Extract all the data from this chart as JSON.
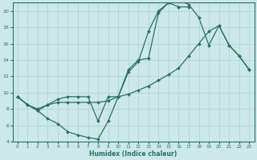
{
  "xlabel": "Humidex (Indice chaleur)",
  "bg_color": "#cce8e8",
  "grid_color": "#b0d0d0",
  "line_color": "#2a706a",
  "xlim": [
    -0.5,
    23.5
  ],
  "ylim": [
    4,
    21
  ],
  "xticks": [
    0,
    1,
    2,
    3,
    4,
    5,
    6,
    7,
    8,
    9,
    10,
    11,
    12,
    13,
    14,
    15,
    16,
    17,
    18,
    19,
    20,
    21,
    22,
    23
  ],
  "yticks": [
    4,
    6,
    8,
    10,
    12,
    14,
    16,
    18,
    20
  ],
  "line1_x": [
    0,
    1,
    2,
    3,
    4,
    5,
    6,
    7,
    8,
    9,
    10,
    11,
    12,
    13,
    14,
    15,
    16,
    17
  ],
  "line1_y": [
    9.5,
    8.5,
    7.8,
    6.8,
    6.2,
    5.2,
    4.8,
    4.5,
    4.3,
    6.5,
    9.5,
    12.5,
    13.8,
    17.5,
    20.0,
    21.0,
    20.5,
    20.5
  ],
  "line2_x": [
    0,
    1,
    2,
    3,
    4,
    5,
    6,
    7,
    8,
    9,
    10,
    11,
    12,
    13,
    14,
    15,
    16,
    17,
    18,
    19,
    20,
    21,
    22,
    23
  ],
  "line2_y": [
    9.5,
    8.5,
    8.0,
    8.5,
    8.8,
    8.8,
    8.8,
    8.8,
    8.8,
    9.0,
    9.5,
    9.8,
    10.3,
    10.8,
    11.5,
    12.2,
    13.0,
    14.5,
    16.0,
    17.5,
    18.2,
    15.8,
    14.5,
    12.8
  ],
  "line3_x": [
    0,
    1,
    2,
    3,
    4,
    5,
    6,
    7,
    8,
    9,
    10,
    11,
    12,
    13,
    14,
    15,
    16,
    17,
    18,
    19,
    20,
    21,
    22,
    23
  ],
  "line3_y": [
    9.5,
    8.5,
    7.8,
    8.5,
    9.2,
    9.5,
    9.5,
    9.5,
    6.5,
    9.5,
    9.5,
    12.8,
    14.0,
    14.2,
    19.8,
    21.0,
    21.3,
    20.8,
    19.2,
    15.8,
    18.2,
    15.8,
    14.5,
    12.8
  ]
}
